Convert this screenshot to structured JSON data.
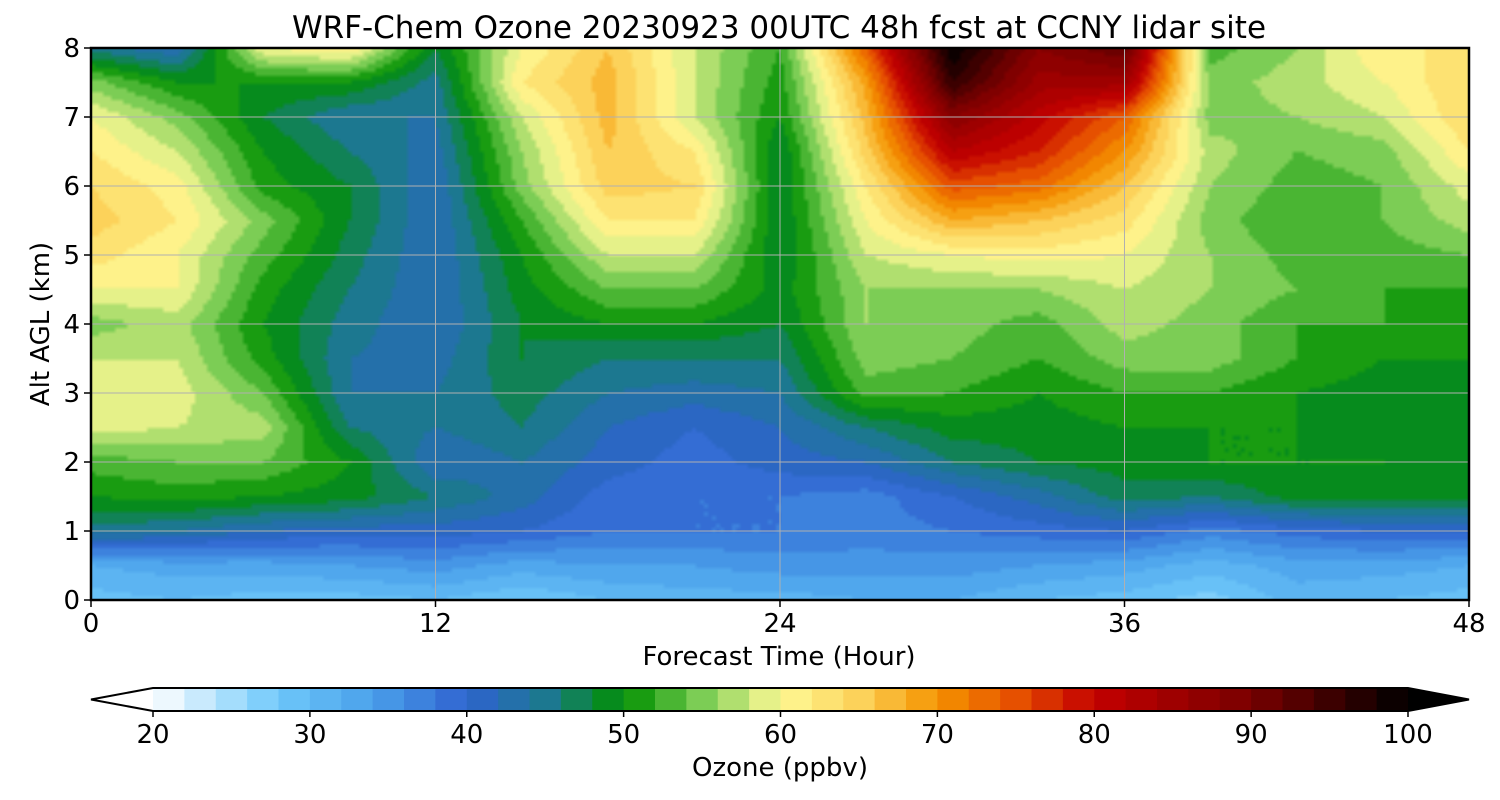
{
  "chart_data": {
    "type": "heatmap",
    "title": "WRF-Chem Ozone  20230923 00UTC 48h fcst at CCNY lidar site",
    "xlabel": "Forecast Time (Hour)",
    "ylabel": "Alt AGL (km)",
    "xlim": [
      0,
      48
    ],
    "ylim": [
      0,
      8
    ],
    "xticks": [
      0,
      12,
      24,
      36,
      48
    ],
    "yticks": [
      0,
      1,
      2,
      3,
      4,
      5,
      6,
      7,
      8
    ],
    "grid": true,
    "colorbar": {
      "label": "Ozone  (ppbv)",
      "range": [
        20,
        100
      ],
      "ticks": [
        20,
        30,
        40,
        50,
        60,
        70,
        80,
        90,
        100
      ],
      "extend": "both",
      "stops": [
        {
          "v": 20,
          "c": "#ffffff"
        },
        {
          "v": 28,
          "c": "#6ec8fa"
        },
        {
          "v": 34,
          "c": "#4aa0ea"
        },
        {
          "v": 40,
          "c": "#2f63d0"
        },
        {
          "v": 45,
          "c": "#1c7890"
        },
        {
          "v": 50,
          "c": "#009000"
        },
        {
          "v": 55,
          "c": "#7ccd55"
        },
        {
          "v": 60,
          "c": "#fffa96"
        },
        {
          "v": 65,
          "c": "#fcd25a"
        },
        {
          "v": 70,
          "c": "#f59400"
        },
        {
          "v": 75,
          "c": "#e65000"
        },
        {
          "v": 80,
          "c": "#c30000"
        },
        {
          "v": 90,
          "c": "#780000"
        },
        {
          "v": 100,
          "c": "#000000"
        }
      ]
    },
    "x": [
      0,
      3,
      6,
      9,
      12,
      15,
      18,
      21,
      24,
      27,
      30,
      33,
      36,
      39,
      42,
      45,
      48
    ],
    "y": [
      0,
      0.5,
      1,
      1.5,
      2,
      2.5,
      3,
      3.5,
      4,
      4.5,
      5,
      5.5,
      6,
      6.5,
      7,
      7.5,
      8
    ],
    "z": [
      [
        29,
        30,
        29,
        29,
        30,
        28,
        30,
        31,
        31,
        32,
        32,
        30,
        29,
        27,
        31,
        30,
        29
      ],
      [
        32,
        33,
        33,
        34,
        35,
        33,
        34,
        34,
        35,
        35,
        35,
        34,
        33,
        31,
        33,
        33,
        32
      ],
      [
        45,
        44,
        42,
        41,
        41,
        40,
        38,
        38,
        38,
        37,
        38,
        39,
        40,
        37,
        39,
        40,
        40
      ],
      [
        50,
        51,
        50,
        49,
        46,
        43,
        39,
        38,
        38,
        37,
        40,
        43,
        47,
        46,
        49,
        49,
        49
      ],
      [
        53,
        54,
        54,
        50,
        42,
        44,
        41,
        39,
        41,
        42,
        46,
        48,
        49,
        50,
        50,
        50,
        49
      ],
      [
        59,
        58,
        57,
        46,
        44,
        46,
        42,
        40,
        42,
        46,
        49,
        49,
        50,
        50,
        50,
        49,
        49
      ],
      [
        60,
        59,
        54,
        44,
        44,
        47,
        44,
        43,
        44,
        53,
        52,
        50,
        52,
        52,
        50,
        49,
        48
      ],
      [
        58,
        58,
        51,
        44,
        43,
        48,
        46,
        46,
        46,
        55,
        54,
        52,
        55,
        55,
        52,
        50,
        50
      ],
      [
        55,
        57,
        50,
        45,
        42,
        48,
        50,
        50,
        48,
        56,
        55,
        53,
        57,
        55,
        52,
        52,
        51
      ],
      [
        60,
        60,
        51,
        46,
        42,
        49,
        54,
        54,
        49,
        56,
        56,
        56,
        58,
        56,
        54,
        52,
        52
      ],
      [
        63,
        60,
        53,
        47,
        42,
        50,
        58,
        58,
        48,
        58,
        60,
        61,
        60,
        56,
        53,
        53,
        54
      ],
      [
        65,
        62,
        55,
        48,
        42,
        52,
        62,
        62,
        48,
        60,
        68,
        66,
        63,
        55,
        52,
        54,
        57
      ],
      [
        64,
        61,
        51,
        48,
        42,
        55,
        65,
        64,
        48,
        62,
        75,
        73,
        66,
        56,
        53,
        54,
        59
      ],
      [
        62,
        58,
        50,
        46,
        43,
        56,
        66,
        62,
        48,
        65,
        82,
        78,
        70,
        57,
        54,
        55,
        62
      ],
      [
        60,
        55,
        48,
        44,
        44,
        58,
        67,
        58,
        50,
        67,
        88,
        81,
        74,
        55,
        56,
        58,
        64
      ],
      [
        55,
        50,
        50,
        50,
        45,
        62,
        67,
        58,
        51,
        69,
        96,
        85,
        85,
        55,
        57,
        60,
        64
      ],
      [
        45,
        42,
        60,
        62,
        48,
        60,
        66,
        58,
        52,
        74,
        100,
        88,
        92,
        53,
        56,
        62,
        62
      ]
    ]
  }
}
